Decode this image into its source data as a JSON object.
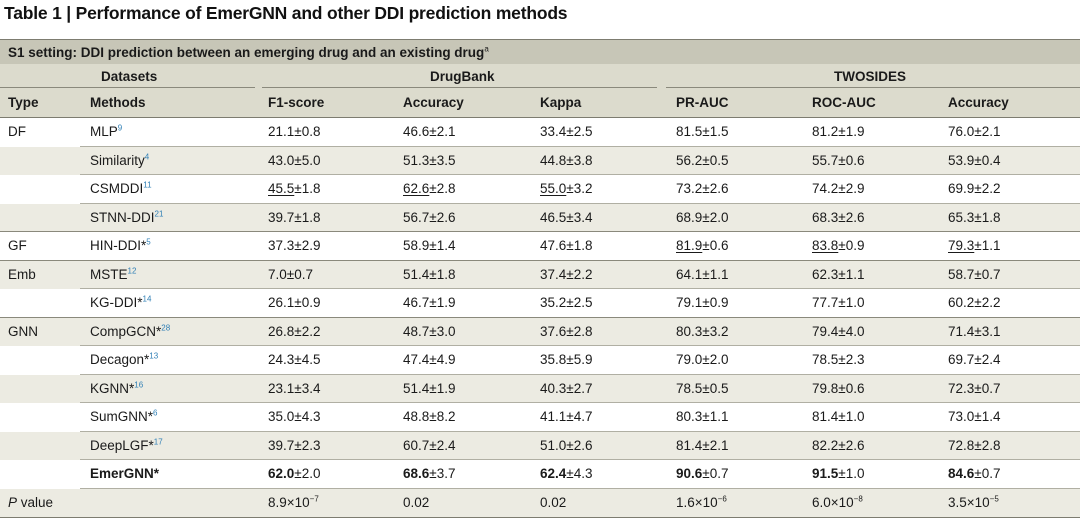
{
  "title": "Table 1 | Performance of EmerGNN and other DDI prediction methods",
  "setting": {
    "label": "S1 setting: DDI prediction between an emerging drug and an existing drug",
    "note": "a"
  },
  "groups": {
    "datasets": "Datasets",
    "drugbank": "DrugBank",
    "twosides": "TWOSIDES"
  },
  "columns": [
    "Type",
    "Methods",
    "F1-score",
    "Accuracy",
    "Kappa",
    "PR-AUC",
    "ROC-AUC",
    "Accuracy"
  ],
  "rows": [
    {
      "type": "DF",
      "method": "MLP",
      "ref": "9",
      "cells": [
        {
          "v": "21.1",
          "e": "±0.8"
        },
        {
          "v": "46.6",
          "e": "±2.1"
        },
        {
          "v": "33.4",
          "e": "±2.5"
        },
        {
          "v": "81.5",
          "e": "±1.5"
        },
        {
          "v": "81.2",
          "e": "±1.9"
        },
        {
          "v": "76.0",
          "e": "±2.1"
        }
      ]
    },
    {
      "type": "",
      "method": "Similarity",
      "ref": "4",
      "cells": [
        {
          "v": "43.0",
          "e": "±5.0"
        },
        {
          "v": "51.3",
          "e": "±3.5"
        },
        {
          "v": "44.8",
          "e": "±3.8"
        },
        {
          "v": "56.2",
          "e": "±0.5"
        },
        {
          "v": "55.7",
          "e": "±0.6"
        },
        {
          "v": "53.9",
          "e": "±0.4"
        }
      ]
    },
    {
      "type": "",
      "method": "CSMDDI",
      "ref": "11",
      "cells": [
        {
          "v": "45.5",
          "e": "±1.8",
          "u": true
        },
        {
          "v": "62.6",
          "e": "±2.8",
          "u": true
        },
        {
          "v": "55.0",
          "e": "±3.2",
          "u": true
        },
        {
          "v": "73.2",
          "e": "±2.6"
        },
        {
          "v": "74.2",
          "e": "±2.9"
        },
        {
          "v": "69.9",
          "e": "±2.2"
        }
      ]
    },
    {
      "type": "",
      "method": "STNN-DDI",
      "ref": "21",
      "cells": [
        {
          "v": "39.7",
          "e": "±1.8"
        },
        {
          "v": "56.7",
          "e": "±2.6"
        },
        {
          "v": "46.5",
          "e": "±3.4"
        },
        {
          "v": "68.9",
          "e": "±2.0"
        },
        {
          "v": "68.3",
          "e": "±2.6"
        },
        {
          "v": "65.3",
          "e": "±1.8"
        }
      ]
    },
    {
      "type": "GF",
      "method": "HIN-DDI*",
      "ref": "5",
      "cells": [
        {
          "v": "37.3",
          "e": "±2.9"
        },
        {
          "v": "58.9",
          "e": "±1.4"
        },
        {
          "v": "47.6",
          "e": "±1.8"
        },
        {
          "v": "81.9",
          "e": "±0.6",
          "u": true
        },
        {
          "v": "83.8",
          "e": "±0.9",
          "u": true
        },
        {
          "v": "79.3",
          "e": "±1.1",
          "u": true
        }
      ]
    },
    {
      "type": "Emb",
      "method": "MSTE",
      "ref": "12",
      "cells": [
        {
          "v": "7.0",
          "e": "±0.7"
        },
        {
          "v": "51.4",
          "e": "±1.8"
        },
        {
          "v": "37.4",
          "e": "±2.2"
        },
        {
          "v": "64.1",
          "e": "±1.1"
        },
        {
          "v": "62.3",
          "e": "±1.1"
        },
        {
          "v": "58.7",
          "e": "±0.7"
        }
      ]
    },
    {
      "type": "",
      "method": "KG-DDI*",
      "ref": "14",
      "cells": [
        {
          "v": "26.1",
          "e": "±0.9"
        },
        {
          "v": "46.7",
          "e": "±1.9"
        },
        {
          "v": "35.2",
          "e": "±2.5"
        },
        {
          "v": "79.1",
          "e": "±0.9"
        },
        {
          "v": "77.7",
          "e": "±1.0"
        },
        {
          "v": "60.2",
          "e": "±2.2"
        }
      ]
    },
    {
      "type": "GNN",
      "method": "CompGCN*",
      "ref": "28",
      "cells": [
        {
          "v": "26.8",
          "e": "±2.2"
        },
        {
          "v": "48.7",
          "e": "±3.0"
        },
        {
          "v": "37.6",
          "e": "±2.8"
        },
        {
          "v": "80.3",
          "e": "±3.2"
        },
        {
          "v": "79.4",
          "e": "±4.0"
        },
        {
          "v": "71.4",
          "e": "±3.1"
        }
      ]
    },
    {
      "type": "",
      "method": "Decagon*",
      "ref": "13",
      "cells": [
        {
          "v": "24.3",
          "e": "±4.5"
        },
        {
          "v": "47.4",
          "e": "±4.9"
        },
        {
          "v": "35.8",
          "e": "±5.9"
        },
        {
          "v": "79.0",
          "e": "±2.0"
        },
        {
          "v": "78.5",
          "e": "±2.3"
        },
        {
          "v": "69.7",
          "e": "±2.4"
        }
      ]
    },
    {
      "type": "",
      "method": "KGNN*",
      "ref": "16",
      "cells": [
        {
          "v": "23.1",
          "e": "±3.4"
        },
        {
          "v": "51.4",
          "e": "±1.9"
        },
        {
          "v": "40.3",
          "e": "±2.7"
        },
        {
          "v": "78.5",
          "e": "±0.5"
        },
        {
          "v": "79.8",
          "e": "±0.6"
        },
        {
          "v": "72.3",
          "e": "±0.7"
        }
      ]
    },
    {
      "type": "",
      "method": "SumGNN*",
      "ref": "6",
      "cells": [
        {
          "v": "35.0",
          "e": "±4.3"
        },
        {
          "v": "48.8",
          "e": "±8.2"
        },
        {
          "v": "41.1",
          "e": "±4.7"
        },
        {
          "v": "80.3",
          "e": "±1.1"
        },
        {
          "v": "81.4",
          "e": "±1.0"
        },
        {
          "v": "73.0",
          "e": "±1.4"
        }
      ]
    },
    {
      "type": "",
      "method": "DeepLGF*",
      "ref": "17",
      "cells": [
        {
          "v": "39.7",
          "e": "±2.3"
        },
        {
          "v": "60.7",
          "e": "±2.4"
        },
        {
          "v": "51.0",
          "e": "±2.6"
        },
        {
          "v": "81.4",
          "e": "±2.1"
        },
        {
          "v": "82.2",
          "e": "±2.6"
        },
        {
          "v": "72.8",
          "e": "±2.8"
        }
      ]
    },
    {
      "type": "",
      "method": "EmerGNN*",
      "ref": "",
      "bold": true,
      "cells": [
        {
          "v": "62.0",
          "e": "±2.0"
        },
        {
          "v": "68.6",
          "e": "±3.7"
        },
        {
          "v": "62.4",
          "e": "±4.3"
        },
        {
          "v": "90.6",
          "e": "±0.7"
        },
        {
          "v": "91.5",
          "e": "±1.0"
        },
        {
          "v": "84.6",
          "e": "±0.7"
        }
      ]
    }
  ],
  "pvalue": {
    "label_italic": "P",
    "label_rest": " value",
    "cells": [
      {
        "base": "8.9×10",
        "exp": "−7"
      },
      {
        "base": "0.02",
        "exp": ""
      },
      {
        "base": "0.02",
        "exp": ""
      },
      {
        "base": "1.6×10",
        "exp": "−6"
      },
      {
        "base": "6.0×10",
        "exp": "−8"
      },
      {
        "base": "3.5×10",
        "exp": "−5"
      }
    ]
  }
}
